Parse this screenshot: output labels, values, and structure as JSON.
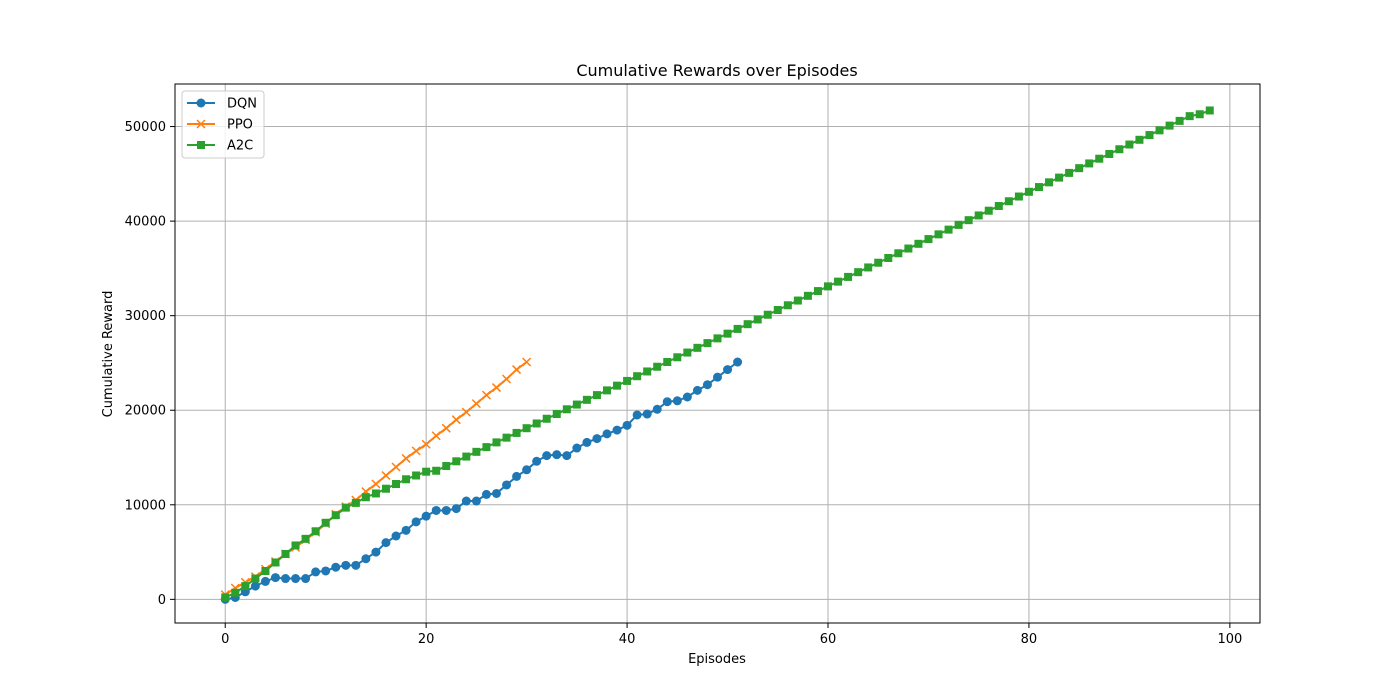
{
  "chart_data": {
    "type": "line",
    "title": "Cumulative Rewards over Episodes",
    "xlabel": "Episodes",
    "ylabel": "Cumulative Reward",
    "xlim": [
      -5,
      103
    ],
    "ylim": [
      -2500,
      54500
    ],
    "xticks": [
      0,
      20,
      40,
      60,
      80,
      100
    ],
    "yticks": [
      0,
      10000,
      20000,
      30000,
      40000,
      50000
    ],
    "grid": true,
    "legend_position": "upper-left",
    "series": [
      {
        "name": "DQN",
        "color": "#1f77b4",
        "marker": "circle",
        "x": [
          0,
          1,
          2,
          3,
          4,
          5,
          6,
          7,
          8,
          9,
          10,
          11,
          12,
          13,
          14,
          15,
          16,
          17,
          18,
          19,
          20,
          21,
          22,
          23,
          24,
          25,
          26,
          27,
          28,
          29,
          30,
          31,
          32,
          33,
          34,
          35,
          36,
          37,
          38,
          39,
          40,
          41,
          42,
          43,
          44,
          45,
          46,
          47,
          48,
          49,
          50,
          51
        ],
        "y": [
          0,
          200,
          800,
          1400,
          1900,
          2300,
          2200,
          2200,
          2200,
          2900,
          3000,
          3400,
          3600,
          3600,
          4300,
          5000,
          6000,
          6700,
          7300,
          8200,
          8800,
          9400,
          9400,
          9600,
          10400,
          10400,
          11100,
          11200,
          12100,
          13000,
          13700,
          14600,
          15200,
          15300,
          15200,
          16000,
          16600,
          17000,
          17500,
          17900,
          18400,
          19500,
          19600,
          20100,
          20900,
          21000,
          21400,
          22100,
          22700,
          23500,
          24300,
          25100
        ]
      },
      {
        "name": "PPO",
        "color": "#ff7f0e",
        "marker": "x",
        "x": [
          0,
          1,
          2,
          3,
          4,
          5,
          6,
          7,
          8,
          9,
          10,
          11,
          12,
          13,
          14,
          15,
          16,
          17,
          18,
          19,
          20,
          21,
          22,
          23,
          24,
          25,
          26,
          27,
          28,
          29,
          30
        ],
        "y": [
          500,
          1200,
          1800,
          2400,
          3200,
          4000,
          4800,
          5500,
          6300,
          7100,
          8000,
          9000,
          9800,
          10500,
          11400,
          12200,
          13100,
          14000,
          14900,
          15700,
          16400,
          17300,
          18100,
          19000,
          19800,
          20700,
          21600,
          22400,
          23300,
          24300,
          25100
        ]
      },
      {
        "name": "A2C",
        "color": "#2ca02c",
        "marker": "square",
        "x": [
          0,
          1,
          2,
          3,
          4,
          5,
          6,
          7,
          8,
          9,
          10,
          11,
          12,
          13,
          14,
          15,
          16,
          17,
          18,
          19,
          20,
          21,
          22,
          23,
          24,
          25,
          26,
          27,
          28,
          29,
          30,
          31,
          32,
          33,
          34,
          35,
          36,
          37,
          38,
          39,
          40,
          41,
          42,
          43,
          44,
          45,
          46,
          47,
          48,
          49,
          50,
          51,
          52,
          53,
          54,
          55,
          56,
          57,
          58,
          59,
          60,
          61,
          62,
          63,
          64,
          65,
          66,
          67,
          68,
          69,
          70,
          71,
          72,
          73,
          74,
          75,
          76,
          77,
          78,
          79,
          80,
          81,
          82,
          83,
          84,
          85,
          86,
          87,
          88,
          89,
          90,
          91,
          92,
          93,
          94,
          95,
          96,
          97,
          98
        ],
        "y": [
          200,
          700,
          1400,
          2200,
          3000,
          3900,
          4800,
          5700,
          6400,
          7200,
          8100,
          8900,
          9700,
          10200,
          10800,
          11200,
          11700,
          12200,
          12700,
          13100,
          13500,
          13600,
          14100,
          14600,
          15100,
          15600,
          16100,
          16600,
          17100,
          17600,
          18100,
          18600,
          19100,
          19600,
          20100,
          20600,
          21100,
          21600,
          22100,
          22600,
          23100,
          23600,
          24100,
          24600,
          25100,
          25600,
          26100,
          26600,
          27100,
          27600,
          28100,
          28600,
          29100,
          29600,
          30100,
          30600,
          31100,
          31600,
          32100,
          32600,
          33100,
          33600,
          34100,
          34600,
          35100,
          35600,
          36100,
          36600,
          37100,
          37600,
          38100,
          38600,
          39100,
          39600,
          40100,
          40600,
          41100,
          41600,
          42100,
          42600,
          43100,
          43600,
          44100,
          44600,
          45100,
          45600,
          46100,
          46600,
          47100,
          47600,
          48100,
          48600,
          49100,
          49600,
          50100,
          50600,
          51100,
          51300,
          51700
        ]
      }
    ]
  }
}
